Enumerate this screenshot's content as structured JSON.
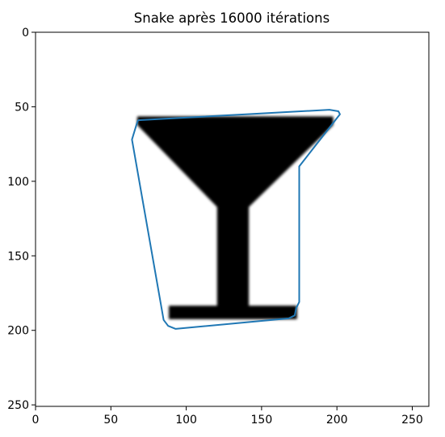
{
  "chart_data": {
    "type": "image",
    "title": "Snake après 16000 itérations",
    "xlabel": "",
    "ylabel": "",
    "xlim": [
      0,
      261
    ],
    "ylim": [
      251,
      0
    ],
    "xticks": [
      0,
      50,
      100,
      150,
      200,
      250
    ],
    "yticks": [
      0,
      50,
      100,
      150,
      200,
      250
    ],
    "grid": false,
    "image_shape": {
      "name": "cocktail glass silhouette",
      "color": "#000000",
      "bowl": [
        [
          68,
          57
        ],
        [
          197,
          57
        ],
        [
          197,
          62
        ],
        [
          141,
          117
        ],
        [
          121,
          117
        ],
        [
          68,
          62
        ]
      ],
      "stem": [
        [
          121,
          117
        ],
        [
          141,
          117
        ],
        [
          141,
          184
        ],
        [
          121,
          184
        ]
      ],
      "base": [
        [
          89,
          184
        ],
        [
          173,
          184
        ],
        [
          173,
          192
        ],
        [
          89,
          192
        ]
      ]
    },
    "series": [
      {
        "type": "closed-contour",
        "color": "#1f77b4",
        "points": [
          [
            68,
            59
          ],
          [
            195,
            52
          ],
          [
            201,
            53
          ],
          [
            202,
            55
          ],
          [
            175,
            90
          ],
          [
            175,
            181
          ],
          [
            173,
            185
          ],
          [
            172,
            190
          ],
          [
            168,
            192
          ],
          [
            93,
            199
          ],
          [
            88,
            197
          ],
          [
            85,
            193
          ],
          [
            64,
            72
          ],
          [
            67,
            62
          ],
          [
            68,
            59
          ]
        ]
      }
    ]
  }
}
